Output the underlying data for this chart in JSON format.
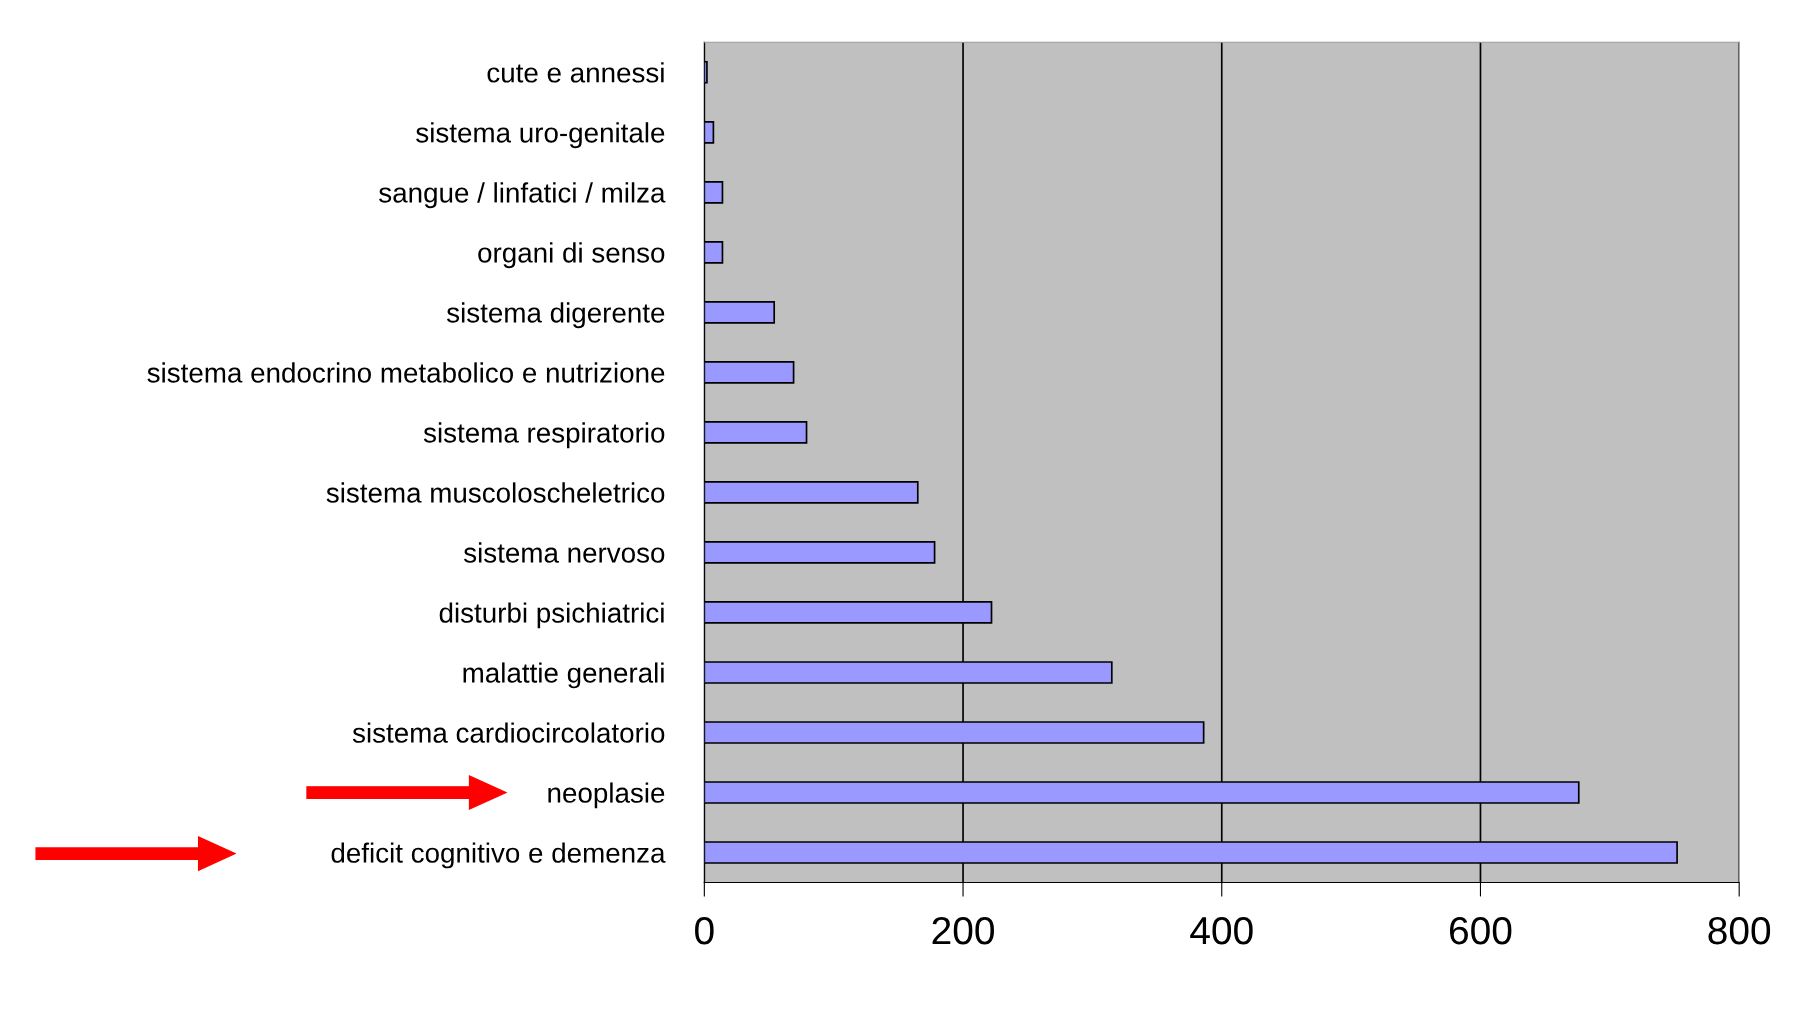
{
  "chart_data": {
    "type": "bar",
    "orientation": "horizontal",
    "categories": [
      "cute e annessi",
      "sistema uro-genitale",
      "sangue / linfatici / milza",
      "organi di senso",
      "sistema digerente",
      "sistema endocrino metabolico e nutrizione",
      "sistema respiratorio",
      "sistema muscoloscheletrico",
      "sistema nervoso",
      "disturbi psichiatrici",
      "malattie generali",
      "sistema cardiocircolatorio",
      "neoplasie",
      "deficit cognitivo e demenza"
    ],
    "values": [
      2,
      7,
      14,
      14,
      54,
      69,
      79,
      165,
      178,
      222,
      315,
      386,
      676,
      752
    ],
    "color": "#9999ff",
    "xlim": [
      0,
      800
    ],
    "xticks": [
      0,
      200,
      400,
      600,
      800
    ],
    "grid": "x"
  }
}
